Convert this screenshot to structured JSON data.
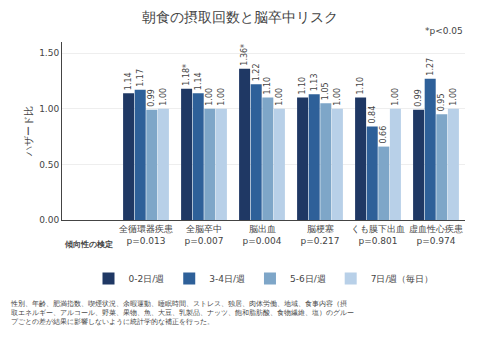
{
  "chart_data": {
    "type": "bar",
    "title": "朝食の摂取回数と脳卒中リスク",
    "y_label": "ハザード比",
    "categories": [
      "全循環器疾患",
      "全脳卒中",
      "脳出血",
      "脳梗塞",
      "くも膜下出血",
      "虚血性心疾患"
    ],
    "p_values": [
      "p=0.013",
      "p=0.007",
      "p=0.004",
      "p=0.217",
      "p=0.801",
      "p=0.974"
    ],
    "series": [
      {
        "name": "0-2日/週",
        "color": "#1F3864",
        "values": [
          1.14,
          1.18,
          1.36,
          1.1,
          1.1,
          0.99
        ],
        "value_labels": [
          "1.14",
          "1.18*",
          "1.36*",
          "1.10",
          "1.10",
          "0.99"
        ]
      },
      {
        "name": "3-4日/週",
        "color": "#2E6099",
        "values": [
          1.17,
          1.14,
          1.22,
          1.13,
          0.84,
          1.27
        ],
        "value_labels": [
          "1.17",
          "1.14",
          "1.22",
          "1.13",
          "0.84",
          "1.27"
        ]
      },
      {
        "name": "5-6日/週",
        "color": "#7EA6C8",
        "values": [
          0.99,
          1.0,
          1.1,
          1.05,
          0.66,
          0.95
        ],
        "value_labels": [
          "0.99",
          "1.00",
          "1.10",
          "1.05",
          "0.66",
          "0.95"
        ]
      },
      {
        "name": "7日/週（毎日）",
        "color": "#B8D0E8",
        "values": [
          1.0,
          1.0,
          1.0,
          1.0,
          1.0,
          1.0
        ],
        "value_labels": [
          "1.00",
          "1.00",
          "1.00",
          "1.00",
          "1.00",
          "1.00"
        ]
      }
    ],
    "ylim": [
      0.0,
      1.6
    ],
    "yticks": [
      {
        "value": 0,
        "label": "0.00"
      },
      {
        "value": 0.5,
        "label": "0.50"
      },
      {
        "value": 1,
        "label": "1.00"
      },
      {
        "value": 1.5,
        "label": "1.50"
      }
    ],
    "grid": true,
    "data_labels": true,
    "legend": "bottom",
    "trend_label": "傾向性の検定",
    "note": "*p<0.05",
    "footnote": [
      "性別、年齢、肥満指数、喫煙状況、余暇運動、睡眠時間、ストレス、独居、肉体労働、地域、食事内容（摂",
      "取エネルギー、アルコール、野菜、果物、魚、大豆、乳製品、ナッツ、飽和脂肪酸、食物繊維、塩）のグルー",
      "プごとの差が結果に影響しないように統計学的な補正を行った。"
    ]
  }
}
